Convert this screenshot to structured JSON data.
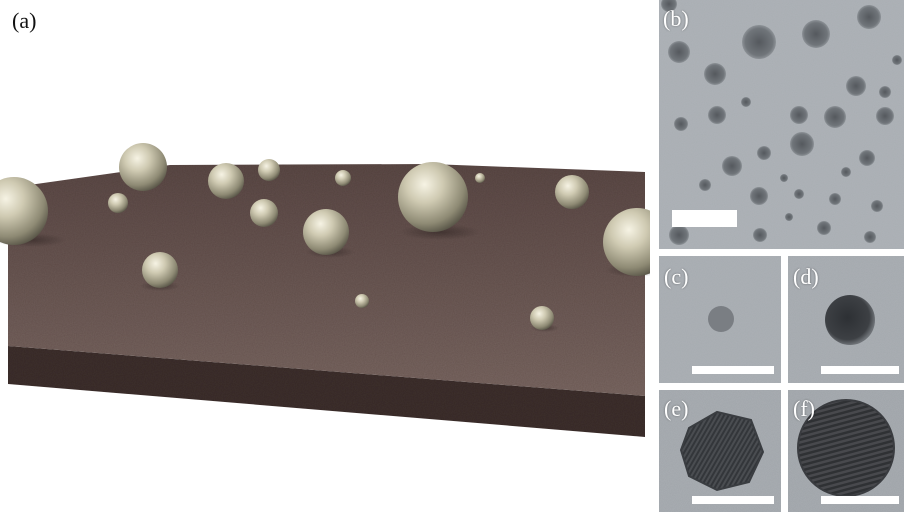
{
  "figure": {
    "panels": [
      {
        "id": "a",
        "label": "(a)",
        "content": "3D rendering of spherical nanoparticles on a rough substrate"
      },
      {
        "id": "b",
        "label": "(b)",
        "content": "TEM image, many nanoparticles"
      },
      {
        "id": "c",
        "label": "(c)",
        "content": "TEM image, single small particle"
      },
      {
        "id": "d",
        "label": "(d)",
        "content": "TEM image, single dark particle"
      },
      {
        "id": "e",
        "label": "(e)",
        "content": "HRTEM image, faceted particle with lattice fringes"
      },
      {
        "id": "f",
        "label": "(f)",
        "content": "HRTEM image, large particle with lattice fringes"
      }
    ],
    "colors": {
      "substrate_top": "#6e5a55",
      "substrate_side": "#3b2d2b",
      "sphere": "#b8b39a",
      "tem_background": "#a7acb1",
      "scalebar": "#ffffff"
    }
  }
}
